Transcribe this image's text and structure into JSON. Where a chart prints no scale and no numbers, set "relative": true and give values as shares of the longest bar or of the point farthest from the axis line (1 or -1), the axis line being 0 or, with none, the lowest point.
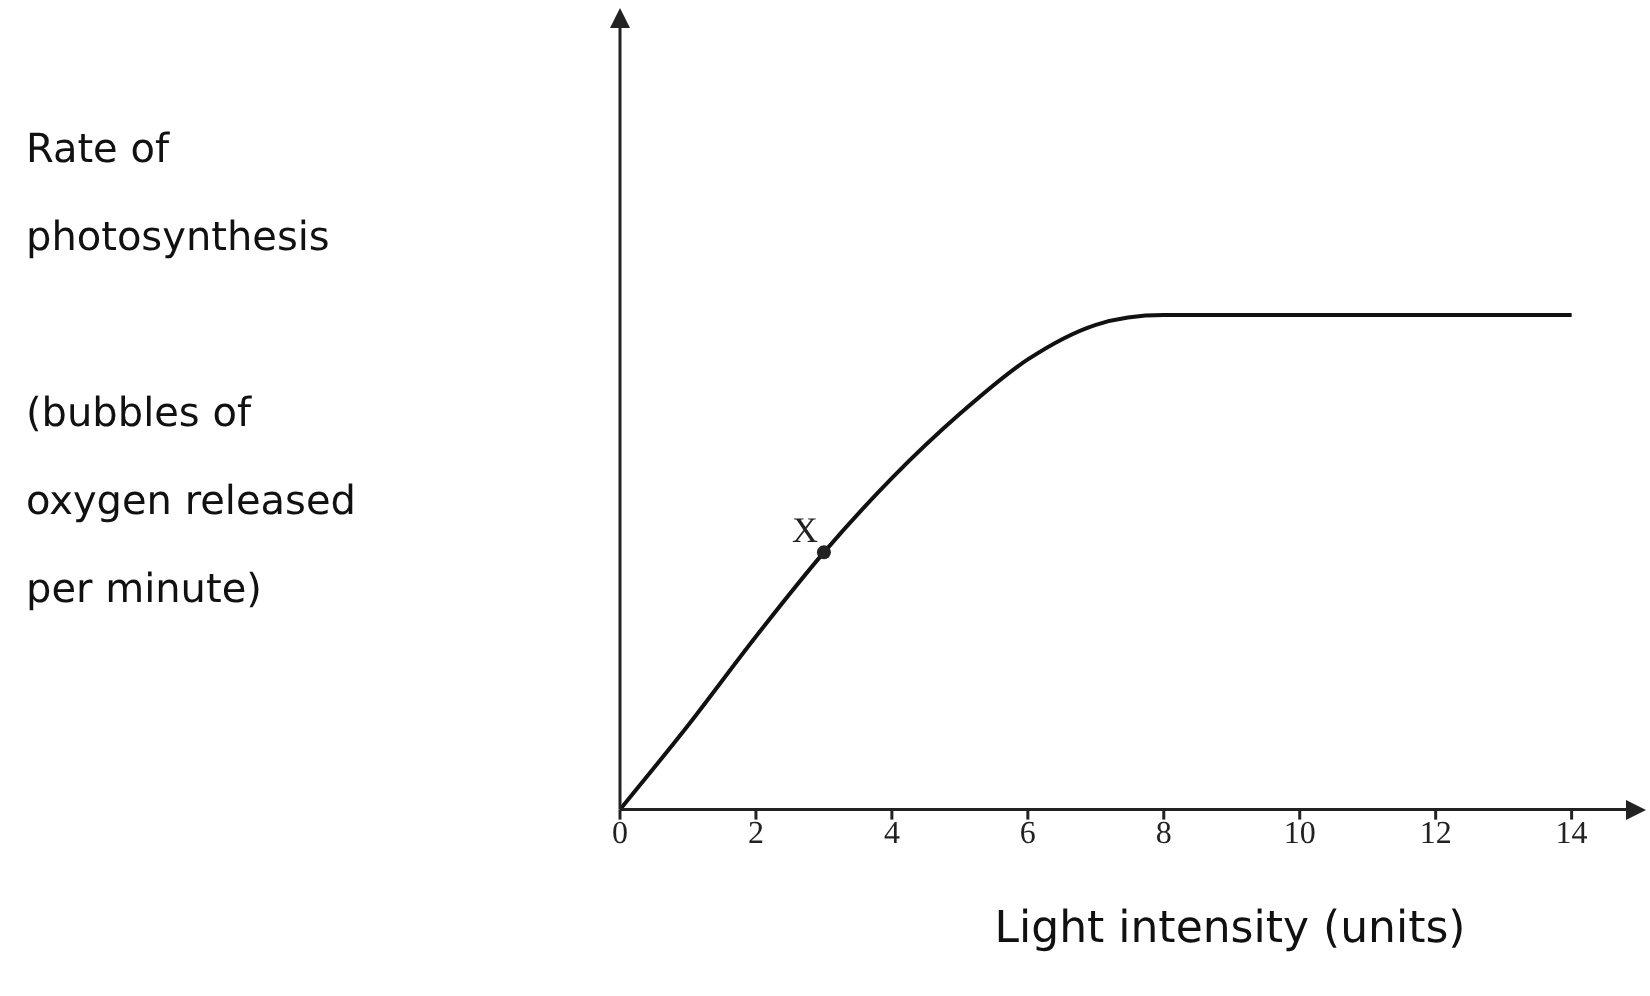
{
  "chart_data": {
    "type": "line",
    "relative": true,
    "xlabel": "Light intensity (units)",
    "ylabel": "Rate of photosynthesis\n\n(bubbles of oxygen released per minute)",
    "x": [
      0,
      1,
      2,
      3,
      4,
      5,
      6,
      7,
      8,
      10,
      12,
      14
    ],
    "series": [
      {
        "color": "#111111",
        "values": [
          0,
          0.17,
          0.35,
          0.52,
          0.67,
          0.8,
          0.91,
          0.98,
          1,
          1,
          1,
          1
        ]
      }
    ],
    "xlim": [
      0,
      14.8
    ],
    "xticks": [
      0,
      2,
      4,
      6,
      8,
      10,
      12,
      14
    ],
    "tick_labels": "x",
    "grid": false,
    "legend": false,
    "marker": "none",
    "line_style": "solid",
    "annotations": [
      {
        "text": "X",
        "x": 3,
        "y": 0.52
      }
    ]
  }
}
